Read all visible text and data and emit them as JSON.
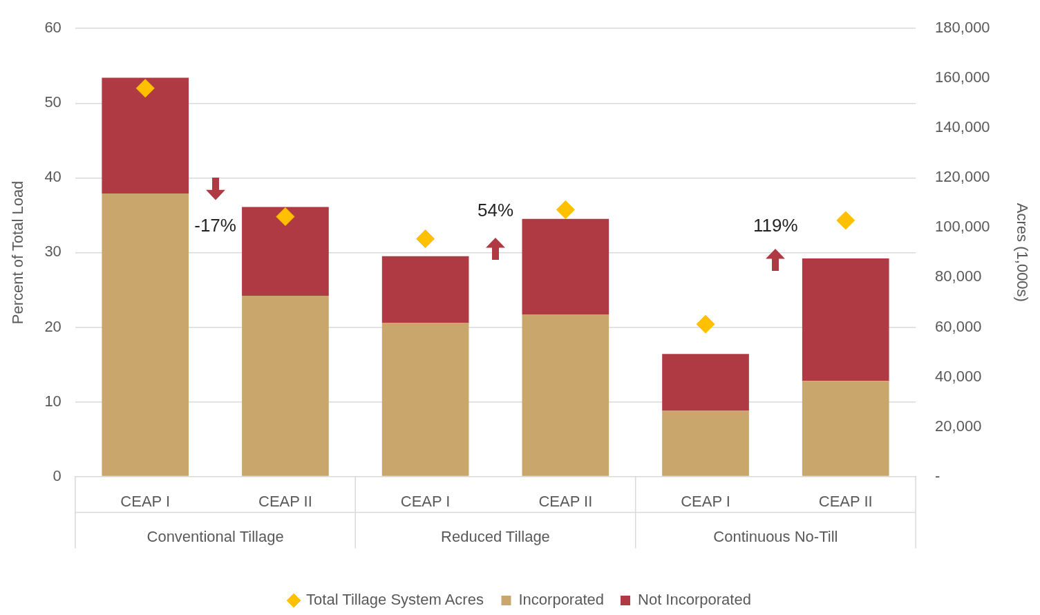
{
  "chart_data": {
    "type": "bar",
    "stacked": true,
    "categories": [
      "CEAP I",
      "CEAP II",
      "CEAP I",
      "CEAP II",
      "CEAP I",
      "CEAP II"
    ],
    "series": [
      {
        "name": "Incorporated",
        "color": "#c9a66b",
        "values": [
          37.9,
          24.2,
          20.6,
          21.7,
          8.8,
          12.8
        ]
      },
      {
        "name": "Not Incorporated",
        "color": "#b03a44",
        "values": [
          15.5,
          11.9,
          8.9,
          12.8,
          7.6,
          16.4
        ]
      },
      {
        "name": "Total Tillage System Acres",
        "type": "scatter",
        "axis": "y2",
        "marker": "diamond",
        "color": "#ffc000",
        "values": [
          156000,
          104400,
          95500,
          107200,
          61200,
          102900
        ]
      }
    ],
    "ylabel": "Percent of Total Load",
    "y2label": "Acres (1,000s)",
    "ylim": [
      0,
      60
    ],
    "yticks": [
      0,
      10,
      20,
      30,
      40,
      50,
      60
    ],
    "y2lim": [
      0,
      180000
    ],
    "y2ticks": [
      {
        "value": 0,
        "label": "-"
      },
      {
        "value": 20000,
        "label": "20,000"
      },
      {
        "value": 40000,
        "label": "40,000"
      },
      {
        "value": 60000,
        "label": "60,000"
      },
      {
        "value": 80000,
        "label": "80,000"
      },
      {
        "value": 100000,
        "label": "100,000"
      },
      {
        "value": 120000,
        "label": "120,000"
      },
      {
        "value": 140000,
        "label": "140,000"
      },
      {
        "value": 160000,
        "label": "160,000"
      },
      {
        "value": 180000,
        "label": "180,000"
      }
    ],
    "annotations": [
      "-17%",
      "54%",
      "119%",
      "Conventional Tillage",
      "Reduced Tillage",
      "Continuous No-Till"
    ],
    "grid": "y",
    "legend": "bottom"
  }
}
